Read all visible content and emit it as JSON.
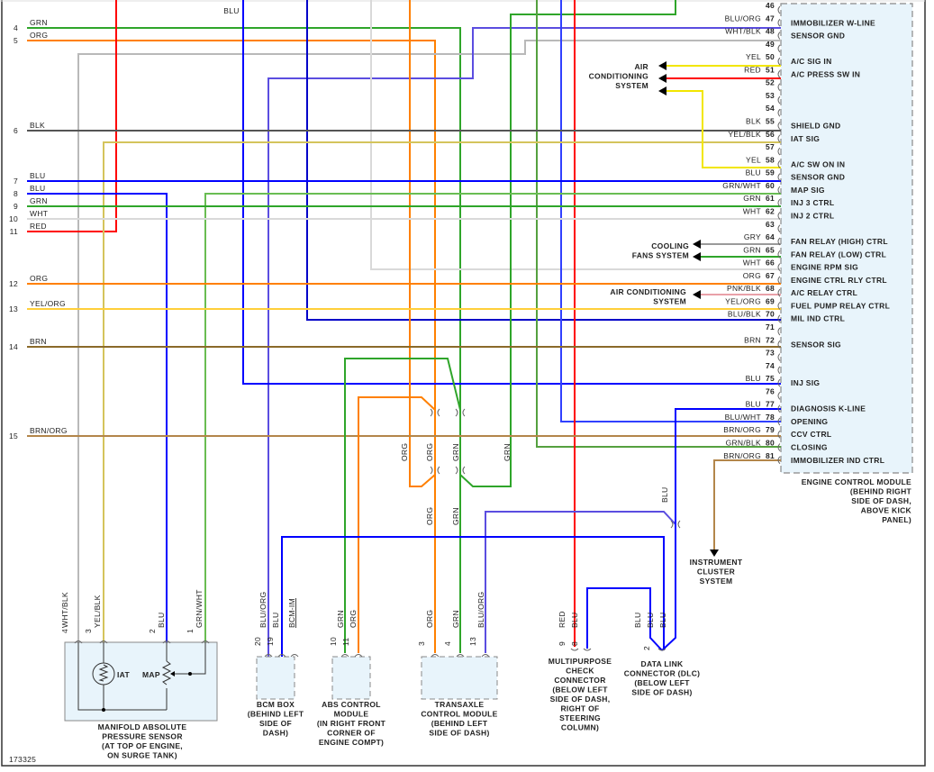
{
  "diagram_id": "173325",
  "colors": {
    "GRN": "#2fa52a",
    "ORG": "#ff8000",
    "BLU": "#0000ff",
    "BLK": "#555555",
    "WHT": "#d9d9d9",
    "RED": "#ff0000",
    "YEL": "#f2e600",
    "GRY": "#9a9a9a",
    "PNK/BLK": "#e9a0a8",
    "BRN": "#8a6a2a",
    "YEL/BLK": "#d4c45c",
    "YEL/ORG": "#ffcf3a",
    "BRN/ORG": "#b3864a",
    "GRN/WHT": "#69bd52",
    "GRN/BLK": "#55a03f",
    "BLU/ORG": "#5b4de0",
    "BLU/WHT": "#3040ff",
    "BLU/BLK": "#0000c8",
    "WHT/BLK": "#b9b9b9",
    "module_fill": "#e8f4fb"
  },
  "left_rows": [
    {
      "num": "4",
      "wire": "GRN"
    },
    {
      "num": "5",
      "wire": "ORG"
    },
    {
      "num": "6",
      "wire": "BLK"
    },
    {
      "num": "7",
      "wire": "BLU"
    },
    {
      "num": "8",
      "wire": "BLU"
    },
    {
      "num": "9",
      "wire": "GRN"
    },
    {
      "num": "10",
      "wire": "WHT"
    },
    {
      "num": "11",
      "wire": "RED"
    },
    {
      "num": "12",
      "wire": "ORG"
    },
    {
      "num": "13",
      "wire": "YEL/ORG"
    },
    {
      "num": "14",
      "wire": "BRN"
    },
    {
      "num": "15",
      "wire": "BRN/ORG"
    }
  ],
  "ecm": {
    "name": [
      "ENGINE CONTROL MODULE",
      "(BEHIND RIGHT",
      "SIDE OF DASH,",
      "ABOVE KICK",
      "PANEL)"
    ],
    "pins": [
      {
        "pin": "46",
        "wire": "",
        "func": ""
      },
      {
        "pin": "47",
        "wire": "BLU/ORG",
        "func": "IMMOBILIZER W-LINE"
      },
      {
        "pin": "48",
        "wire": "WHT/BLK",
        "func": "SENSOR GND"
      },
      {
        "pin": "49",
        "wire": "",
        "func": ""
      },
      {
        "pin": "50",
        "wire": "YEL",
        "func": "A/C SIG IN"
      },
      {
        "pin": "51",
        "wire": "RED",
        "func": "A/C PRESS SW IN"
      },
      {
        "pin": "52",
        "wire": "",
        "func": ""
      },
      {
        "pin": "53",
        "wire": "",
        "func": ""
      },
      {
        "pin": "54",
        "wire": "",
        "func": ""
      },
      {
        "pin": "55",
        "wire": "BLK",
        "func": "SHIELD GND"
      },
      {
        "pin": "56",
        "wire": "YEL/BLK",
        "func": "IAT SIG"
      },
      {
        "pin": "57",
        "wire": "",
        "func": ""
      },
      {
        "pin": "58",
        "wire": "YEL",
        "func": "A/C SW ON IN"
      },
      {
        "pin": "59",
        "wire": "BLU",
        "func": "SENSOR GND"
      },
      {
        "pin": "60",
        "wire": "GRN/WHT",
        "func": "MAP SIG"
      },
      {
        "pin": "61",
        "wire": "GRN",
        "func": "INJ 3 CTRL"
      },
      {
        "pin": "62",
        "wire": "WHT",
        "func": "INJ 2 CTRL"
      },
      {
        "pin": "63",
        "wire": "",
        "func": ""
      },
      {
        "pin": "64",
        "wire": "GRY",
        "func": "FAN RELAY (HIGH) CTRL"
      },
      {
        "pin": "65",
        "wire": "GRN",
        "func": "FAN RELAY (LOW) CTRL"
      },
      {
        "pin": "66",
        "wire": "WHT",
        "func": "ENGINE RPM SIG"
      },
      {
        "pin": "67",
        "wire": "ORG",
        "func": "ENGINE CTRL RLY CTRL"
      },
      {
        "pin": "68",
        "wire": "PNK/BLK",
        "func": "A/C RELAY CTRL"
      },
      {
        "pin": "69",
        "wire": "YEL/ORG",
        "func": "FUEL PUMP RELAY CTRL"
      },
      {
        "pin": "70",
        "wire": "BLU/BLK",
        "func": "MIL IND CTRL"
      },
      {
        "pin": "71",
        "wire": "",
        "func": ""
      },
      {
        "pin": "72",
        "wire": "BRN",
        "func": "SENSOR SIG"
      },
      {
        "pin": "73",
        "wire": "",
        "func": ""
      },
      {
        "pin": "74",
        "wire": "",
        "func": ""
      },
      {
        "pin": "75",
        "wire": "BLU",
        "func": "INJ SIG"
      },
      {
        "pin": "76",
        "wire": "",
        "func": ""
      },
      {
        "pin": "77",
        "wire": "BLU",
        "func": "DIAGNOSIS K-LINE"
      },
      {
        "pin": "78",
        "wire": "BLU/WHT",
        "func": "OPENING"
      },
      {
        "pin": "79",
        "wire": "BRN/ORG",
        "func": "CCV CTRL"
      },
      {
        "pin": "80",
        "wire": "GRN/BLK",
        "func": "CLOSING"
      },
      {
        "pin": "81",
        "wire": "BRN/ORG",
        "func": "IMMOBILIZER IND CTRL"
      }
    ]
  },
  "systems": {
    "ac_system_top": [
      "AIR",
      "CONDITIONING",
      "SYSTEM"
    ],
    "cooling_fans": [
      "COOLING",
      "FANS SYSTEM"
    ],
    "ac_system_mid": [
      "AIR CONDITIONING",
      "SYSTEM"
    ],
    "instrument_cluster": [
      "INSTRUMENT",
      "CLUSTER",
      "SYSTEM"
    ]
  },
  "wire_labels": [
    "BLU",
    "ORG",
    "ORG",
    "GRN",
    "GRN",
    "ORG",
    "GRN",
    "BLU",
    "WHT/BLK",
    "YEL/BLK",
    "BLU",
    "GRN/WHT",
    "BLU/ORG",
    "BLU",
    "BCM-IM",
    "GRN",
    "ORG",
    "ORG",
    "GRN",
    "BLU/ORG",
    "RED",
    "BLU",
    "BLU",
    "BLU",
    "BLU"
  ],
  "pin_labels": [
    "4",
    "3",
    "2",
    "1",
    "20",
    "19",
    "10",
    "11",
    "3",
    "4",
    "13",
    "9",
    "8",
    "2"
  ],
  "components": {
    "map_sensor": {
      "name": [
        "MANIFOLD ABSOLUTE",
        "PRESSURE SENSOR",
        "(AT TOP OF ENGINE,",
        "ON SURGE TANK)"
      ],
      "iat": "IAT",
      "map": "MAP"
    },
    "bcm": {
      "name": [
        "BCM BOX",
        "(BEHIND LEFT",
        "SIDE OF",
        "DASH)"
      ]
    },
    "abs": {
      "name": [
        "ABS CONTROL",
        "MODULE",
        "(IN RIGHT FRONT",
        "CORNER OF",
        "ENGINE COMPT)"
      ]
    },
    "tcm": {
      "name": [
        "TRANSAXLE",
        "CONTROL MODULE",
        "(BEHIND LEFT",
        "SIDE OF DASH)"
      ]
    },
    "mpc": {
      "name": [
        "MULTIPURPOSE",
        "CHECK",
        "CONNECTOR",
        "(BELOW LEFT",
        "SIDE OF DASH,",
        "RIGHT OF",
        "STEERING",
        "COLUMN)"
      ]
    },
    "dlc": {
      "name": [
        "DATA LINK",
        "CONNECTOR (DLC)",
        "(BELOW LEFT",
        "SIDE OF DASH)"
      ]
    }
  }
}
